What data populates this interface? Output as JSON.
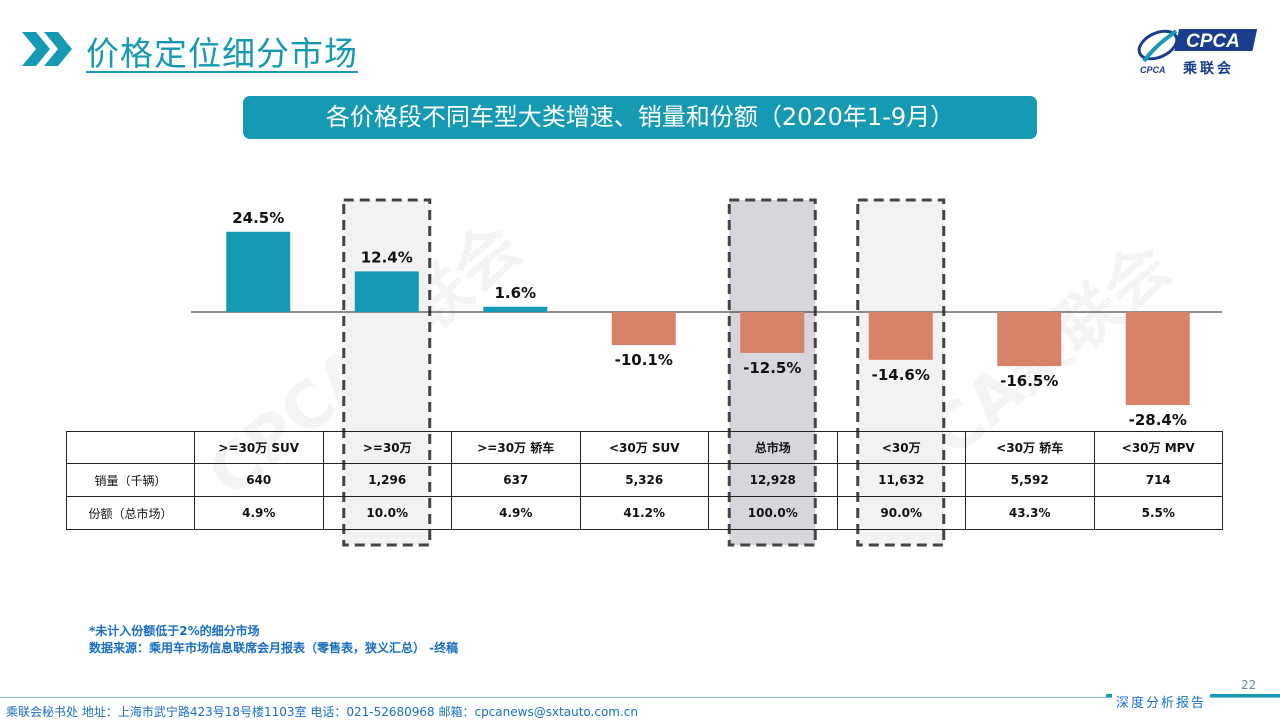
{
  "page": {
    "title": "价格定位细分市场",
    "banner": "各价格段不同车型大类增速、销量和份额（2020年1-9月）",
    "logo_text": "乘联会",
    "logo_brand": "CPCA",
    "watermark_text": "CPCA乘联会",
    "footnote": "*未计入份额低于2%的细分市场",
    "source": "数据来源：乘用车市场信息联席会月报表（零售表，狭义汇总） -终稿",
    "footer_address": "乘联会秘书处   地址：上海市武宁路423号18号楼1103室   电话：021-52680968   邮箱：cpcanews@sxtauto.com.cn",
    "footer_report": "深度分析报告",
    "page_number": "22"
  },
  "colors": {
    "accent": "#169ab3",
    "positive_bar": "#169ab3",
    "negative_bar": "#d9826a",
    "highlight_fill": "#d6d6dc",
    "light_fill": "#f2f2f2",
    "dash_border": "#444444"
  },
  "chart_data": {
    "type": "bar",
    "categories": [
      ">=30万 SUV",
      ">=30万",
      ">=30万 轿车",
      "<30万 SUV",
      "总市场",
      "<30万",
      "<30万 轿车",
      "<30万 MPV"
    ],
    "values": [
      24.5,
      12.4,
      1.6,
      -10.1,
      -12.5,
      -14.6,
      -16.5,
      -28.4
    ],
    "value_labels": [
      "24.5%",
      "12.4%",
      "1.6%",
      "-10.1%",
      "-12.5%",
      "-14.6%",
      "-16.5%",
      "-28.4%"
    ],
    "ylim": [
      -30,
      30
    ],
    "highlighted_dashed": [
      ">=30万",
      "总市场",
      "<30万"
    ],
    "shaded_dark": [
      "总市场"
    ],
    "table": {
      "header_cells": [
        ">=30万 SUV",
        ">=30万",
        ">=30万 轿车",
        "<30万 SUV",
        "总市场",
        "<30万",
        "<30万 轿车",
        "<30万 MPV"
      ],
      "rows": [
        {
          "label": "销量（千辆）",
          "values": [
            "640",
            "1,296",
            "637",
            "5,326",
            "12,928",
            "11,632",
            "5,592",
            "714"
          ]
        },
        {
          "label": "份额（总市场）",
          "values": [
            "4.9%",
            "10.0%",
            "4.9%",
            "41.2%",
            "100.0%",
            "90.0%",
            "43.3%",
            "5.5%"
          ]
        }
      ]
    }
  }
}
